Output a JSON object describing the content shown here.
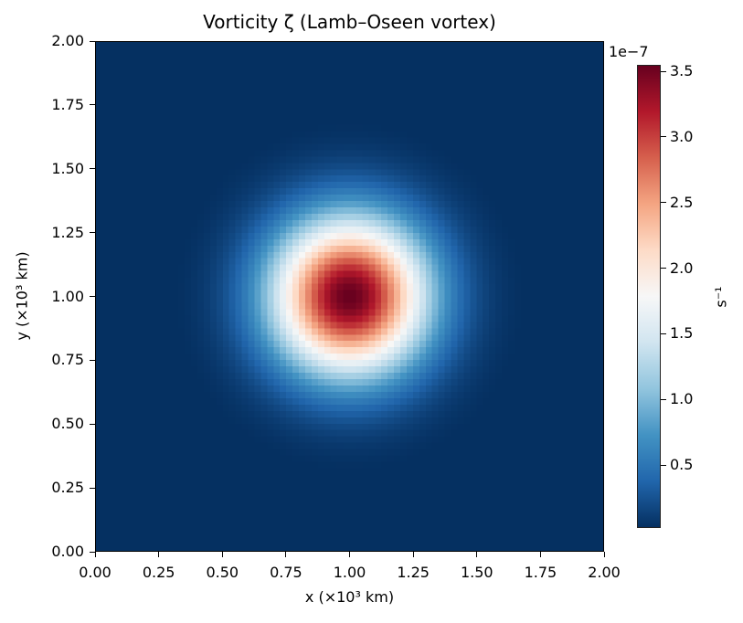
{
  "chart_data": {
    "type": "heatmap",
    "title": "Vorticity ζ (Lamb–Oseen vortex)",
    "xlabel": "x (×10³ km)",
    "ylabel": "y (×10³ km)",
    "xlim": [
      0.0,
      2.0
    ],
    "ylim": [
      0.0,
      2.0
    ],
    "x_ticks": [
      "0.00",
      "0.25",
      "0.50",
      "0.75",
      "1.00",
      "1.25",
      "1.50",
      "1.75",
      "2.00"
    ],
    "y_ticks": [
      "0.00",
      "0.25",
      "0.50",
      "0.75",
      "1.00",
      "1.25",
      "1.50",
      "1.75",
      "2.00"
    ],
    "grid": false,
    "colormap": "RdBu_r",
    "field": {
      "description": "Gaussian Lamb–Oseen vorticity centered at (1.0, 1.0), grid ~80×80",
      "center": [
        1.0,
        1.0
      ],
      "peak_value": 3.55e-07,
      "min_value": 2e-09,
      "e_folding_radius": 0.3,
      "grid_n": 80
    },
    "colorbar": {
      "label": "s⁻¹",
      "offset_text": "1e−7",
      "range": [
        0.02,
        3.55
      ],
      "ticks": [
        "0.5",
        "1.0",
        "1.5",
        "2.0",
        "2.5",
        "3.0",
        "3.5"
      ],
      "tick_values": [
        0.5,
        1.0,
        1.5,
        2.0,
        2.5,
        3.0,
        3.5
      ]
    },
    "colors": {
      "low": "#053061",
      "mid": "#f7f7f7",
      "high": "#67001f"
    }
  }
}
